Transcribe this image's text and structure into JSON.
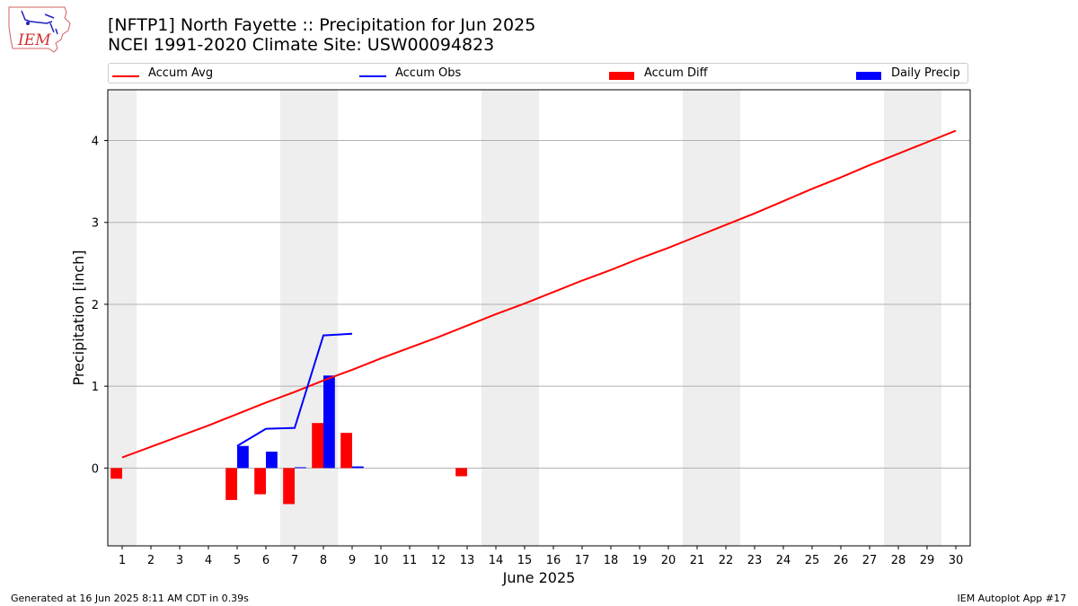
{
  "title_line1": "[NFTP1] North Fayette :: Precipitation for Jun 2025",
  "title_line2": "NCEI 1991-2020 Climate Site: USW00094823",
  "logo_text": "IEM",
  "footer_left": "Generated at 16 Jun 2025 8:11 AM CDT in 0.39s",
  "footer_right": "IEM Autoplot App #17",
  "colors": {
    "avg": "#ff0000",
    "obs": "#0000ff",
    "diff": "#ff0000",
    "daily": "#0000ff",
    "weekend": "#eeeeee",
    "grid": "#b0b0b0"
  },
  "legend": [
    {
      "label": "Accum Avg",
      "kind": "line",
      "color": "#ff0000"
    },
    {
      "label": "Accum Obs",
      "kind": "line",
      "color": "#0000ff"
    },
    {
      "label": "Accum Diff",
      "kind": "box",
      "color": "#ff0000"
    },
    {
      "label": "Daily Precip",
      "kind": "box",
      "color": "#0000ff"
    }
  ],
  "chart_data": {
    "type": "bar",
    "xlabel": "June 2025",
    "ylabel": "Precipitation [inch]",
    "xlim": [
      0.5,
      30.5
    ],
    "ylim": [
      -0.95,
      4.62
    ],
    "grid": "y",
    "legend_position": "top",
    "x_ticks": [
      1,
      2,
      3,
      4,
      5,
      6,
      7,
      8,
      9,
      10,
      11,
      12,
      13,
      14,
      15,
      16,
      17,
      18,
      19,
      20,
      21,
      22,
      23,
      24,
      25,
      26,
      27,
      28,
      29,
      30
    ],
    "y_ticks": [
      0,
      1,
      2,
      3,
      4
    ],
    "weekend_spans": [
      [
        0.5,
        1.5
      ],
      [
        6.5,
        8.5
      ],
      [
        13.5,
        15.5
      ],
      [
        20.5,
        22.5
      ],
      [
        27.5,
        29.5
      ]
    ],
    "series": [
      {
        "name": "Accum Avg",
        "kind": "line",
        "x": [
          1,
          2,
          3,
          4,
          5,
          6,
          7,
          8,
          9,
          10,
          11,
          12,
          13,
          14,
          15,
          16,
          17,
          18,
          19,
          20,
          21,
          22,
          23,
          24,
          25,
          26,
          27,
          28,
          29,
          30
        ],
        "values": [
          0.13,
          0.26,
          0.39,
          0.52,
          0.66,
          0.8,
          0.93,
          1.07,
          1.2,
          1.34,
          1.47,
          1.6,
          1.74,
          1.88,
          2.01,
          2.15,
          2.29,
          2.42,
          2.56,
          2.69,
          2.83,
          2.97,
          3.11,
          3.26,
          3.41,
          3.55,
          3.7,
          3.84,
          3.98,
          4.12
        ]
      },
      {
        "name": "Accum Obs",
        "kind": "line",
        "x": [
          5,
          6,
          7,
          8,
          9
        ],
        "values": [
          0.27,
          0.48,
          0.49,
          1.62,
          1.64
        ]
      },
      {
        "name": "Accum Diff",
        "kind": "bar",
        "x": [
          1,
          5,
          6,
          7,
          8,
          9,
          13
        ],
        "values": [
          -0.13,
          -0.39,
          -0.32,
          -0.44,
          0.55,
          0.43,
          -0.1
        ]
      },
      {
        "name": "Daily Precip",
        "kind": "bar",
        "x": [
          5,
          6,
          7,
          8,
          9
        ],
        "values": [
          0.27,
          0.2,
          0.01,
          1.13,
          0.02
        ]
      }
    ]
  }
}
